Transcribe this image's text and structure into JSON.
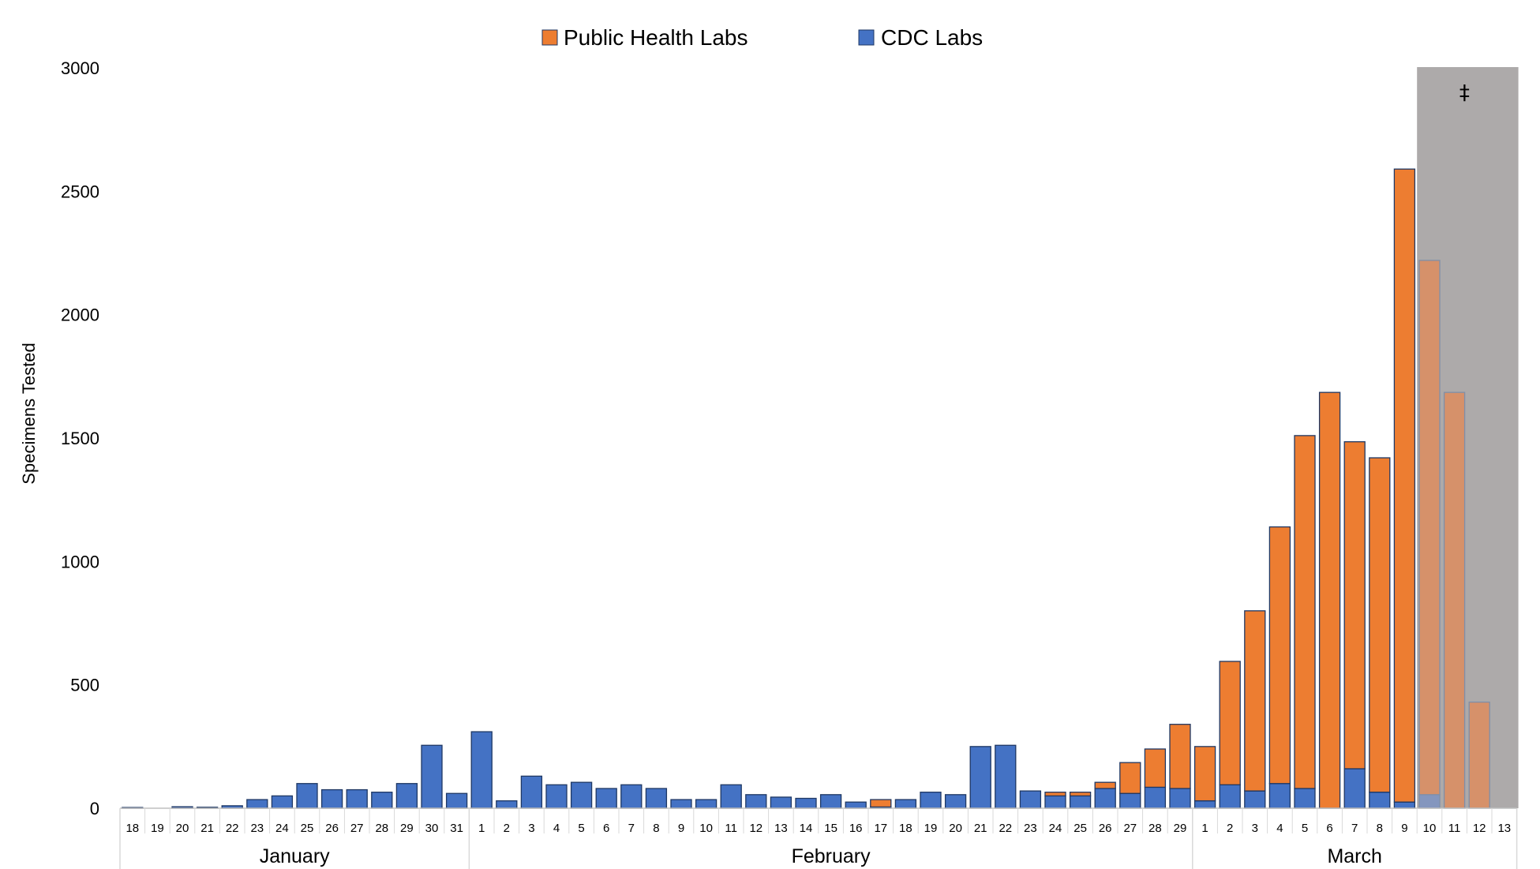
{
  "chart_data": {
    "type": "bar",
    "stacked": true,
    "ylabel": "Specimens Tested",
    "ylim": [
      0,
      3000
    ],
    "yticks": [
      0,
      500,
      1000,
      1500,
      2000,
      2500,
      3000
    ],
    "grid": false,
    "legend_position": "top-center",
    "colors": {
      "public_health": "#ED7D31",
      "cdc": "#4472C4",
      "bar_outline": "#1F3864",
      "shade": "#ADAAAA",
      "shaded_bar_orange": "#D6916A",
      "shaded_bar_blue": "#8496BE",
      "shaded_outline": "#7F8FA8"
    },
    "months": [
      {
        "name": "January",
        "count": 14
      },
      {
        "name": "February",
        "count": 29
      },
      {
        "name": "March",
        "count": 13
      }
    ],
    "categories": [
      "18",
      "19",
      "20",
      "21",
      "22",
      "23",
      "24",
      "25",
      "26",
      "27",
      "28",
      "29",
      "30",
      "31",
      "1",
      "2",
      "3",
      "4",
      "5",
      "6",
      "7",
      "8",
      "9",
      "10",
      "11",
      "12",
      "13",
      "14",
      "15",
      "16",
      "17",
      "18",
      "19",
      "20",
      "21",
      "22",
      "23",
      "24",
      "25",
      "26",
      "27",
      "28",
      "29",
      "1",
      "2",
      "3",
      "4",
      "5",
      "6",
      "7",
      "8",
      "9",
      "10",
      "11",
      "12",
      "13"
    ],
    "series": [
      {
        "name": "CDC Labs",
        "values": [
          3,
          0,
          6,
          4,
          10,
          35,
          50,
          100,
          75,
          75,
          65,
          100,
          255,
          60,
          310,
          30,
          130,
          95,
          105,
          80,
          95,
          80,
          35,
          35,
          95,
          55,
          45,
          40,
          55,
          25,
          5,
          35,
          65,
          55,
          250,
          255,
          70,
          50,
          50,
          80,
          60,
          85,
          80,
          30,
          95,
          70,
          100,
          80,
          0,
          160,
          65,
          25,
          55,
          0,
          0,
          0
        ]
      },
      {
        "name": "Public Health Labs",
        "values": [
          0,
          0,
          0,
          0,
          0,
          0,
          0,
          0,
          0,
          0,
          0,
          0,
          0,
          0,
          0,
          0,
          0,
          0,
          0,
          0,
          0,
          0,
          0,
          0,
          0,
          0,
          0,
          0,
          0,
          0,
          30,
          0,
          0,
          0,
          0,
          0,
          0,
          15,
          15,
          25,
          125,
          155,
          260,
          220,
          500,
          730,
          1040,
          1430,
          1685,
          1325,
          1355,
          2565,
          2165,
          1685,
          430,
          0
        ]
      }
    ],
    "shaded_from_index": 52,
    "shaded_annotation": "‡"
  }
}
